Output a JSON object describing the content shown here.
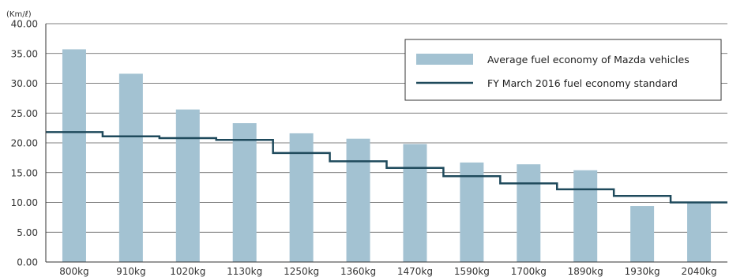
{
  "chart_data": {
    "type": "bar",
    "unit_label": "(Km/ℓ)",
    "categories": [
      "800kg",
      "910kg",
      "1020kg",
      "1130kg",
      "1250kg",
      "1360kg",
      "1470kg",
      "1590kg",
      "1700kg",
      "1890kg",
      "1930kg",
      "2040kg"
    ],
    "y_ticks": [
      "0.00",
      "5.00",
      "10.00",
      "15.00",
      "20.00",
      "25.00",
      "30.00",
      "35.00",
      "40.00"
    ],
    "ylim": [
      0,
      40
    ],
    "grid": true,
    "legend_position": "top-right",
    "series": [
      {
        "name": "Average fuel economy of Mazda vehicles",
        "type": "bar",
        "color": "#a3c2d2",
        "values": [
          35.7,
          31.6,
          25.6,
          23.3,
          21.6,
          20.7,
          19.8,
          16.7,
          16.4,
          15.4,
          9.4,
          10.0
        ]
      },
      {
        "name": "FY March 2016 fuel economy standard",
        "type": "step",
        "color": "#1f4a5c",
        "values": [
          21.8,
          21.1,
          20.8,
          20.5,
          18.3,
          16.9,
          15.8,
          14.4,
          13.2,
          12.2,
          11.1,
          10.0
        ]
      }
    ]
  }
}
